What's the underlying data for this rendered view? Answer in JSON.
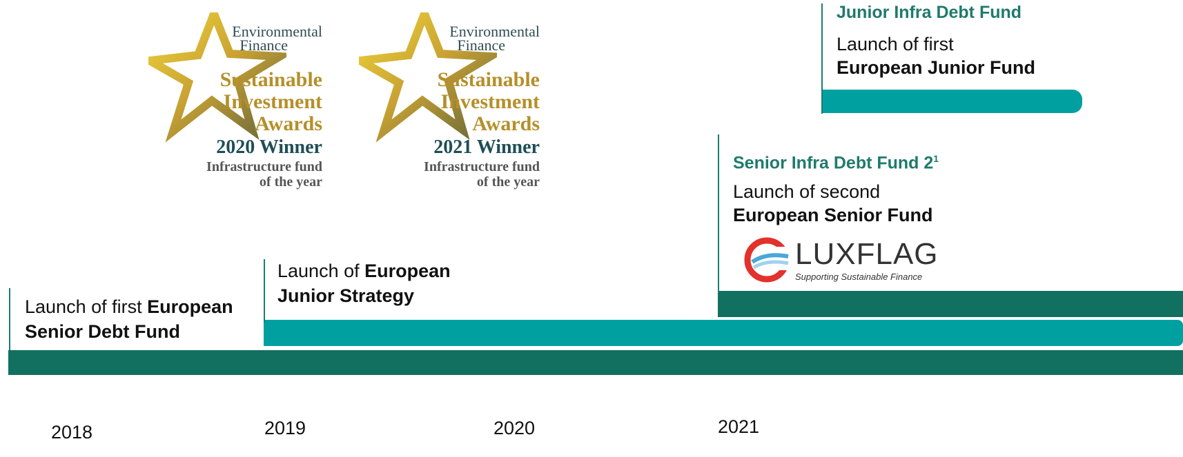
{
  "awards": [
    {
      "line1": "Environmental",
      "line2": "Finance",
      "title1": "Sustainable",
      "title2": "Investment",
      "title3": "Awards",
      "winner": "2020 Winner",
      "category1": "Infrastructure fund",
      "category2": "of the year"
    },
    {
      "line1": "Environmental",
      "line2": "Finance",
      "title1": "Sustainable",
      "title2": "Investment",
      "title3": "Awards",
      "winner": "2021 Winner",
      "category1": "Infrastructure fund",
      "category2": "of the year"
    }
  ],
  "milestones": {
    "senior_debt": {
      "prefix": "Launch of first ",
      "bold": "European",
      "bold2": "Senior Debt Fund"
    },
    "junior_strategy": {
      "prefix": "Launch of ",
      "bold": "European",
      "bold2": "Junior Strategy"
    },
    "senior_fund_2": {
      "title": "Senior Infra Debt Fund 2",
      "footnote": "1",
      "line1": "Launch of second",
      "line2": "European Senior Fund"
    },
    "junior_fund": {
      "title": "Junior Infra Debt Fund",
      "line1": "Launch of first",
      "line2": "European Junior Fund"
    }
  },
  "luxflag": {
    "name": "LUXFLAG",
    "tagline": "Supporting Sustainable Finance"
  },
  "years": [
    "2018",
    "2019",
    "2020",
    "2021"
  ],
  "colors": {
    "dark_teal": "#117060",
    "teal": "#00a0a0",
    "gold": "#b58f2a",
    "navy": "#1f4e57",
    "title_teal": "#1f7a6d",
    "luxflag_red": "#e2322b",
    "luxflag_blue": "#4aa7d8"
  }
}
